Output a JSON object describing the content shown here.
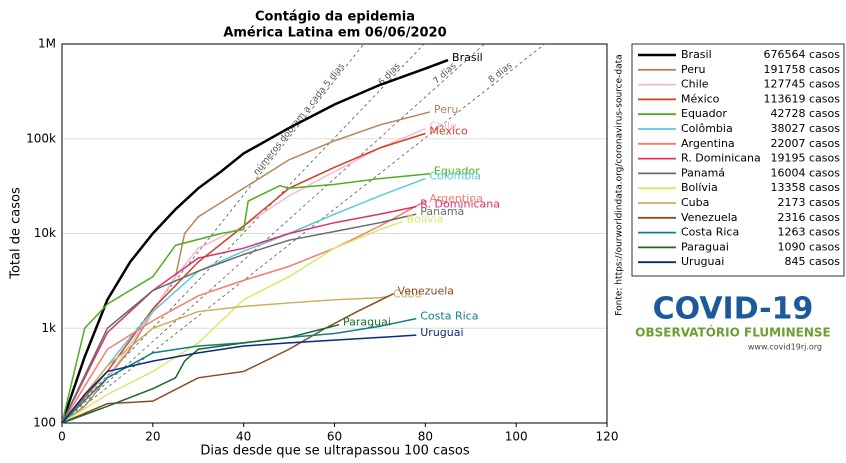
{
  "chart_data": {
    "type": "line",
    "title": "Contágio da epidemia",
    "subtitle": "América Latina em 06/06/2020",
    "x_label": "Dias desde que se ultrapassou 100 casos",
    "y_label": "Total de casos",
    "source": "Fonte: https://ourworldindata.org/coronavirus-source-data",
    "log_y": true,
    "grid": true,
    "xlim": [
      0,
      120
    ],
    "xticks": [
      0,
      20,
      40,
      60,
      80,
      100,
      120
    ],
    "ylim": [
      100,
      1000000
    ],
    "yticks": [
      100,
      {
        "value": 1000,
        "label": "1k"
      },
      {
        "value": 10000,
        "label": "10k"
      },
      {
        "value": 100000,
        "label": "100k"
      },
      {
        "value": 1000000,
        "label": "1M"
      }
    ],
    "doubling_lines": [
      {
        "days": 5,
        "label": "números dobram a cada 5 dias"
      },
      {
        "days": 6,
        "label": "6 dias"
      },
      {
        "days": 7,
        "label": "7 dias"
      },
      {
        "days": 8,
        "label": "8 dias"
      }
    ],
    "series": [
      {
        "name": "Brasil",
        "legend_label": "676564 casos",
        "color": "#000000",
        "x": [
          0,
          5,
          10,
          15,
          20,
          25,
          30,
          35,
          40,
          50,
          60,
          70,
          80,
          85
        ],
        "values": [
          100,
          500,
          2000,
          5000,
          10000,
          18000,
          30000,
          45000,
          70000,
          130000,
          230000,
          370000,
          550000,
          676564
        ]
      },
      {
        "name": "Peru",
        "legend_label": "191758 casos",
        "color": "#b5875a",
        "x": [
          0,
          5,
          10,
          15,
          20,
          25,
          27,
          30,
          40,
          50,
          60,
          70,
          81
        ],
        "values": [
          100,
          150,
          300,
          600,
          1500,
          3500,
          10000,
          15000,
          30000,
          60000,
          95000,
          140000,
          191758
        ]
      },
      {
        "name": "Chile",
        "legend_label": "127745 casos",
        "color": "#f5b9d0",
        "x": [
          0,
          10,
          20,
          25,
          30,
          40,
          50,
          60,
          70,
          80
        ],
        "values": [
          100,
          300,
          1500,
          3500,
          7000,
          12000,
          25000,
          45000,
          80000,
          127745
        ]
      },
      {
        "name": "México",
        "legend_label": "113619 casos",
        "color": "#d04020",
        "x": [
          0,
          10,
          20,
          30,
          40,
          50,
          60,
          70,
          80
        ],
        "values": [
          100,
          350,
          1600,
          5000,
          12000,
          30000,
          50000,
          80000,
          113619
        ]
      },
      {
        "name": "Equador",
        "legend_label": "42728 casos",
        "color": "#4caf20",
        "x": [
          0,
          5,
          10,
          20,
          25,
          35,
          40,
          41,
          48,
          50,
          60,
          70,
          81
        ],
        "values": [
          100,
          1000,
          1800,
          3500,
          7500,
          10000,
          11000,
          22000,
          32000,
          30000,
          33000,
          38000,
          42728
        ]
      },
      {
        "name": "Colômbia",
        "legend_label": "38027 casos",
        "color": "#5bc8dc",
        "x": [
          0,
          10,
          15,
          20,
          30,
          40,
          50,
          60,
          70,
          80
        ],
        "values": [
          100,
          400,
          800,
          1500,
          4000,
          6500,
          10000,
          16000,
          25000,
          38027
        ]
      },
      {
        "name": "Argentina",
        "legend_label": "22007 casos",
        "color": "#f08070",
        "x": [
          0,
          10,
          20,
          30,
          40,
          50,
          60,
          70,
          80
        ],
        "values": [
          100,
          600,
          1200,
          2200,
          3200,
          4500,
          7000,
          12000,
          22007
        ]
      },
      {
        "name": "R. Dominicana",
        "legend_label": "19195 casos",
        "color": "#e0306a",
        "x": [
          0,
          10,
          20,
          30,
          40,
          50,
          60,
          70,
          78
        ],
        "values": [
          100,
          900,
          2500,
          5500,
          7000,
          10000,
          13000,
          16000,
          19195
        ]
      },
      {
        "name": "Panamá",
        "legend_label": "16004 casos",
        "color": "#6b6b6b",
        "x": [
          0,
          10,
          20,
          30,
          40,
          50,
          60,
          70,
          78
        ],
        "values": [
          100,
          1000,
          2500,
          4000,
          6000,
          8500,
          10500,
          13000,
          16004
        ]
      },
      {
        "name": "Bolívia",
        "legend_label": "13358 casos",
        "color": "#d9e86a",
        "x": [
          0,
          10,
          20,
          30,
          40,
          50,
          60,
          70,
          75
        ],
        "values": [
          100,
          200,
          350,
          700,
          2000,
          3500,
          7000,
          11000,
          13358
        ]
      },
      {
        "name": "Cuba",
        "legend_label": "2173 casos",
        "color": "#c8b060",
        "x": [
          0,
          10,
          20,
          30,
          40,
          50,
          60,
          70,
          72
        ],
        "values": [
          100,
          400,
          1000,
          1500,
          1700,
          1850,
          2000,
          2100,
          2173
        ]
      },
      {
        "name": "Venezuela",
        "legend_label": "2316 casos",
        "color": "#8b4a20",
        "x": [
          0,
          10,
          20,
          30,
          40,
          50,
          58,
          65,
          73
        ],
        "values": [
          100,
          160,
          170,
          300,
          350,
          600,
          1000,
          1500,
          2316
        ]
      },
      {
        "name": "Costa Rica",
        "legend_label": "1263 casos",
        "color": "#108080",
        "x": [
          0,
          10,
          20,
          30,
          40,
          50,
          60,
          70,
          78
        ],
        "values": [
          100,
          300,
          550,
          650,
          700,
          800,
          880,
          1050,
          1263
        ]
      },
      {
        "name": "Paraguai",
        "legend_label": "1090 casos",
        "color": "#1a6a30",
        "x": [
          0,
          10,
          20,
          25,
          27,
          30,
          40,
          50,
          58,
          61
        ],
        "values": [
          100,
          150,
          230,
          300,
          450,
          600,
          700,
          800,
          1000,
          1090
        ]
      },
      {
        "name": "Uruguai",
        "legend_label": "845 casos",
        "color": "#0a2a80",
        "x": [
          0,
          5,
          10,
          20,
          30,
          40,
          50,
          60,
          70,
          78
        ],
        "values": [
          100,
          200,
          350,
          450,
          550,
          650,
          700,
          750,
          800,
          845
        ]
      }
    ]
  },
  "logo": {
    "title": "COVID-19",
    "subtitle": "OBSERVATÓRIO FLUMINENSE",
    "url": "www.covid19rj.org"
  }
}
